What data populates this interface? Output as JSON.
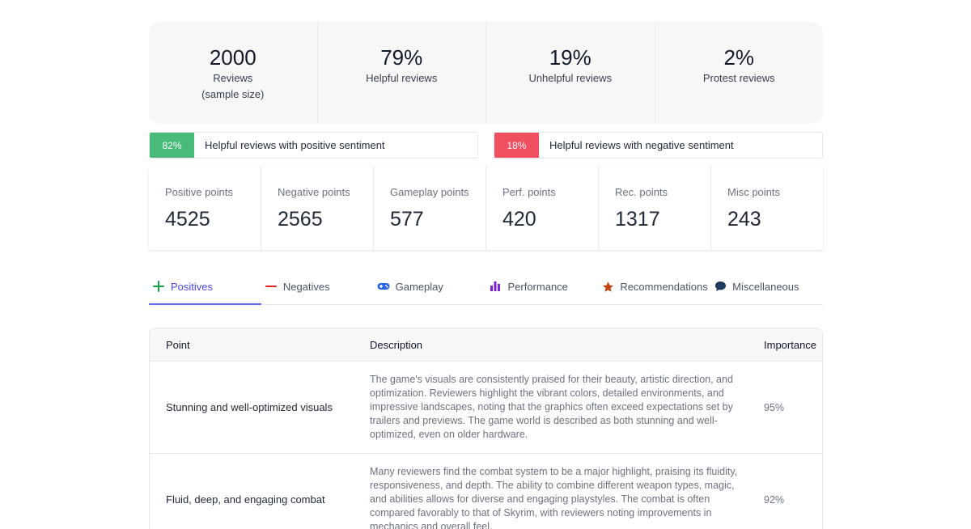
{
  "stats": [
    {
      "value": "2000",
      "label": "Reviews",
      "sub": "(sample size)"
    },
    {
      "value": "79%",
      "label": "Helpful reviews",
      "sub": ""
    },
    {
      "value": "19%",
      "label": "Unhelpful reviews",
      "sub": ""
    },
    {
      "value": "2%",
      "label": "Protest reviews",
      "sub": ""
    }
  ],
  "sentiment": {
    "positive": {
      "percent": "82%",
      "label": "Helpful reviews with positive sentiment",
      "color": "#48bb78"
    },
    "negative": {
      "percent": "18%",
      "label": "Helpful reviews with negative sentiment",
      "color": "#ef4f5e"
    }
  },
  "points": [
    {
      "label": "Positive points",
      "value": "4525"
    },
    {
      "label": "Negative points",
      "value": "2565"
    },
    {
      "label": "Gameplay points",
      "value": "577"
    },
    {
      "label": "Perf. points",
      "value": "420"
    },
    {
      "label": "Rec. points",
      "value": "1317"
    },
    {
      "label": "Misc points",
      "value": "243"
    }
  ],
  "tabs": [
    {
      "label": "Positives",
      "icon": "plus-icon",
      "active": true
    },
    {
      "label": "Negatives",
      "icon": "minus-icon",
      "active": false
    },
    {
      "label": "Gameplay",
      "icon": "gamepad-icon",
      "active": false
    },
    {
      "label": "Performance",
      "icon": "bar-chart-icon",
      "active": false
    },
    {
      "label": "Recommendations",
      "icon": "star-icon",
      "active": false
    },
    {
      "label": "Miscellaneous",
      "icon": "speech-bubble-icon",
      "active": false
    }
  ],
  "table": {
    "headers": {
      "point": "Point",
      "description": "Description",
      "importance": "Importance"
    },
    "rows": [
      {
        "point": "Stunning and well-optimized visuals",
        "description": "The game's visuals are consistently praised for their beauty, artistic direction, and optimization. Reviewers highlight the vibrant colors, detailed environments, and impressive landscapes, noting that the graphics often exceed expectations set by trailers and previews. The game world is described as both stunning and well-optimized, even on older hardware.",
        "importance": "95%"
      },
      {
        "point": "Fluid, deep, and engaging combat",
        "description": "Many reviewers find the combat system to be a major highlight, praising its fluidity, responsiveness, and depth. The ability to combine different weapon types, magic, and abilities allows for diverse and engaging playstyles. The combat is often compared favorably to that of Skyrim, with reviewers noting improvements in mechanics and overall feel.",
        "importance": "92%"
      }
    ]
  }
}
